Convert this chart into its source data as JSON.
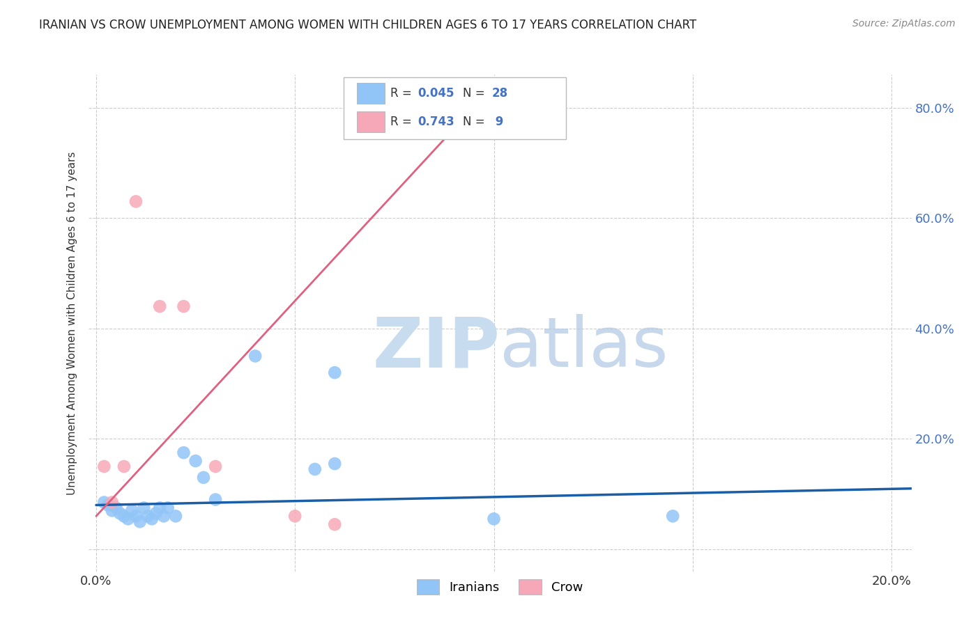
{
  "title": "IRANIAN VS CROW UNEMPLOYMENT AMONG WOMEN WITH CHILDREN AGES 6 TO 17 YEARS CORRELATION CHART",
  "source": "Source: ZipAtlas.com",
  "ylabel": "Unemployment Among Women with Children Ages 6 to 17 years",
  "xlim": [
    -0.002,
    0.205
  ],
  "ylim": [
    -0.04,
    0.86
  ],
  "xticks": [
    0.0,
    0.05,
    0.1,
    0.15,
    0.2
  ],
  "yticks": [
    0.0,
    0.2,
    0.4,
    0.6,
    0.8
  ],
  "xticklabels": [
    "0.0%",
    "",
    "",
    "",
    "20.0%"
  ],
  "yticklabels": [
    "",
    "20.0%",
    "40.0%",
    "60.0%",
    "80.0%"
  ],
  "legend_labels": [
    "Iranians",
    "Crow"
  ],
  "legend_R": [
    0.045,
    0.743
  ],
  "legend_N": [
    28,
    9
  ],
  "iranian_color": "#92C5F7",
  "crow_color": "#F7A8B8",
  "iranian_line_color": "#1A5EA8",
  "crow_line_color": "#E06080",
  "watermark_zip": "ZIP",
  "watermark_atlas": "atlas",
  "watermark_color": "#C8DCF0",
  "background_color": "#FFFFFF",
  "grid_color": "#CCCCCC",
  "iranians_x": [
    0.002,
    0.003,
    0.004,
    0.005,
    0.006,
    0.007,
    0.008,
    0.009,
    0.01,
    0.011,
    0.012,
    0.013,
    0.014,
    0.015,
    0.016,
    0.017,
    0.018,
    0.02,
    0.022,
    0.025,
    0.027,
    0.03,
    0.04,
    0.055,
    0.06,
    0.1,
    0.145,
    0.06
  ],
  "iranians_y": [
    0.085,
    0.08,
    0.07,
    0.075,
    0.065,
    0.06,
    0.055,
    0.07,
    0.06,
    0.05,
    0.075,
    0.06,
    0.055,
    0.065,
    0.075,
    0.06,
    0.075,
    0.06,
    0.175,
    0.16,
    0.13,
    0.09,
    0.35,
    0.145,
    0.32,
    0.055,
    0.06,
    0.155
  ],
  "crow_x": [
    0.002,
    0.004,
    0.007,
    0.01,
    0.016,
    0.022,
    0.03,
    0.05,
    0.06
  ],
  "crow_y": [
    0.15,
    0.085,
    0.15,
    0.63,
    0.44,
    0.44,
    0.15,
    0.06,
    0.045
  ],
  "iranian_trend_x": [
    0.0,
    0.205
  ],
  "iranian_trend_y": [
    0.08,
    0.11
  ],
  "crow_trend_x": [
    0.0,
    0.1
  ],
  "crow_trend_y": [
    0.06,
    0.84
  ]
}
